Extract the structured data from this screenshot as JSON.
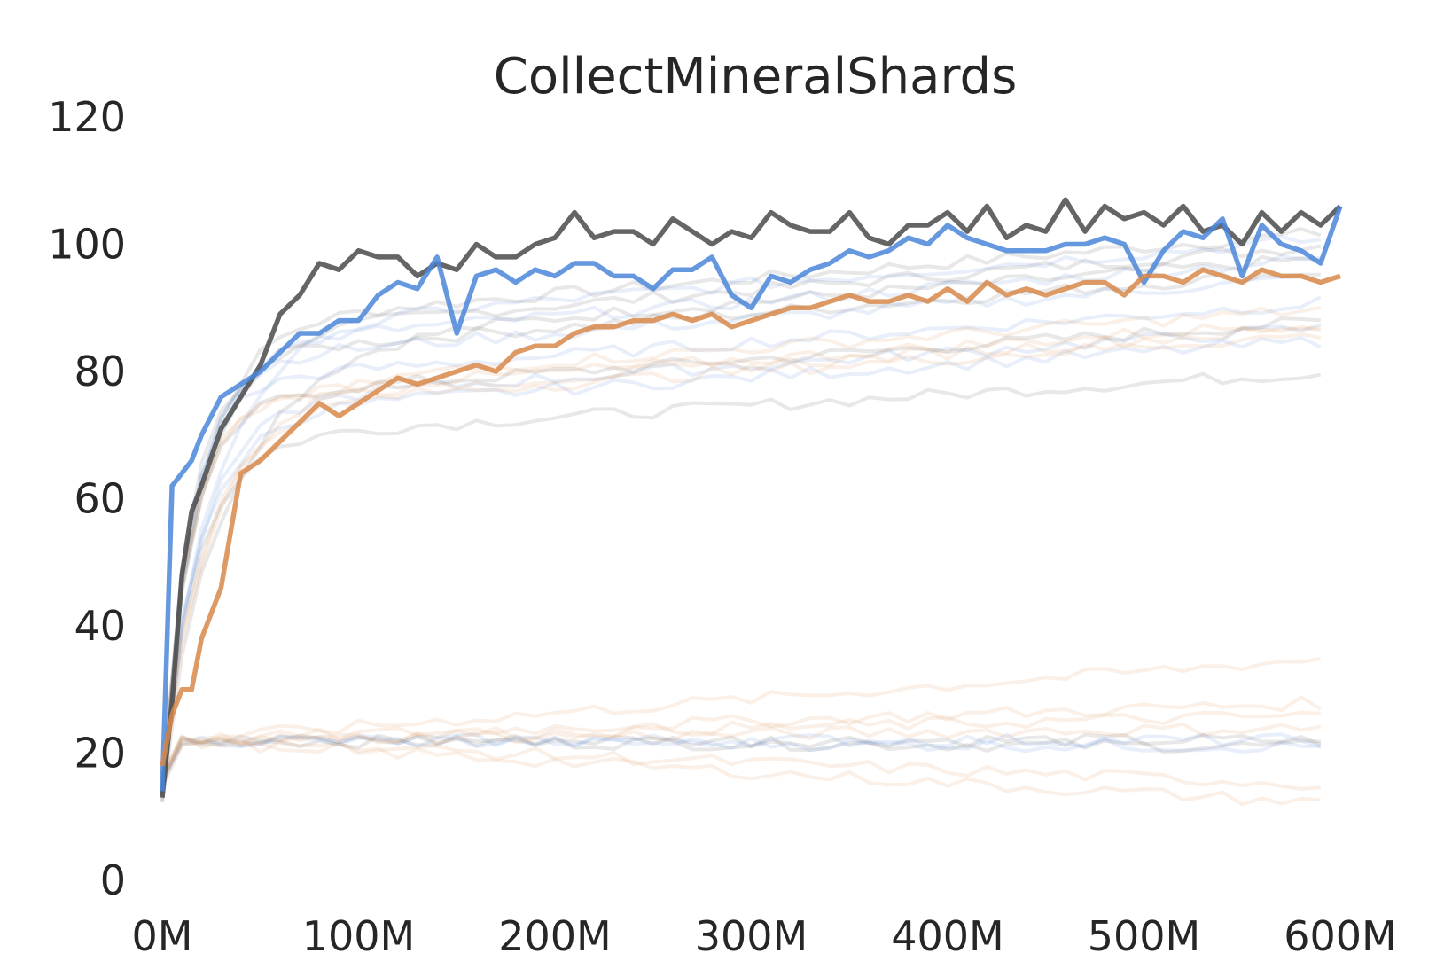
{
  "chart_data": {
    "type": "line",
    "title": "CollectMineralShards",
    "xlabel": "",
    "ylabel": "",
    "xlim": [
      0,
      600
    ],
    "ylim": [
      0,
      120
    ],
    "x_ticks": [
      "0M",
      "100M",
      "200M",
      "300M",
      "400M",
      "500M",
      "600M"
    ],
    "y_ticks": [
      "0",
      "20",
      "40",
      "60",
      "80",
      "100",
      "120"
    ],
    "x_unit": "M steps",
    "grid": false,
    "legend": "none",
    "colors": {
      "gray": "#4a4a4a",
      "blue": "#4a86d8",
      "orange": "#d8884a"
    },
    "highlighted_series": [
      {
        "color": "gray",
        "x": [
          0,
          5,
          10,
          15,
          20,
          30,
          40,
          50,
          60,
          70,
          80,
          90,
          100,
          110,
          120,
          130,
          140,
          150,
          160,
          170,
          180,
          190,
          200,
          210,
          220,
          230,
          240,
          250,
          260,
          270,
          280,
          290,
          300,
          310,
          320,
          330,
          340,
          350,
          360,
          370,
          380,
          390,
          400,
          410,
          420,
          430,
          440,
          450,
          460,
          470,
          480,
          490,
          500,
          510,
          520,
          530,
          540,
          550,
          560,
          570,
          580,
          590,
          600
        ],
        "y": [
          13,
          28,
          48,
          58,
          62,
          71,
          76,
          81,
          89,
          92,
          97,
          96,
          99,
          98,
          98,
          95,
          97,
          96,
          100,
          98,
          98,
          100,
          101,
          105,
          101,
          102,
          102,
          100,
          104,
          102,
          100,
          102,
          101,
          105,
          103,
          102,
          102,
          105,
          101,
          100,
          103,
          103,
          105,
          102,
          106,
          101,
          103,
          102,
          107,
          102,
          106,
          104,
          105,
          103,
          106,
          102,
          103,
          100,
          105,
          102,
          105,
          103,
          106
        ]
      },
      {
        "color": "blue",
        "x": [
          0,
          5,
          10,
          15,
          20,
          30,
          40,
          50,
          60,
          70,
          80,
          90,
          100,
          110,
          120,
          130,
          140,
          150,
          160,
          170,
          180,
          190,
          200,
          210,
          220,
          230,
          240,
          250,
          260,
          270,
          280,
          290,
          300,
          310,
          320,
          330,
          340,
          350,
          360,
          370,
          380,
          390,
          400,
          410,
          420,
          430,
          440,
          450,
          460,
          470,
          480,
          490,
          500,
          510,
          520,
          530,
          540,
          550,
          560,
          570,
          580,
          590,
          600
        ],
        "y": [
          14,
          62,
          64,
          66,
          70,
          76,
          78,
          80,
          83,
          86,
          86,
          88,
          88,
          92,
          94,
          93,
          98,
          86,
          95,
          96,
          94,
          96,
          95,
          97,
          97,
          95,
          95,
          93,
          96,
          96,
          98,
          92,
          90,
          95,
          94,
          96,
          97,
          99,
          98,
          99,
          101,
          100,
          103,
          101,
          100,
          99,
          99,
          99,
          100,
          100,
          101,
          100,
          94,
          99,
          102,
          101,
          104,
          95,
          103,
          100,
          99,
          97,
          106
        ]
      },
      {
        "color": "orange",
        "x": [
          0,
          5,
          10,
          15,
          20,
          30,
          40,
          50,
          60,
          70,
          80,
          90,
          100,
          110,
          120,
          130,
          140,
          150,
          160,
          170,
          180,
          190,
          200,
          210,
          220,
          230,
          240,
          250,
          260,
          270,
          280,
          290,
          300,
          310,
          320,
          330,
          340,
          350,
          360,
          370,
          380,
          390,
          400,
          410,
          420,
          430,
          440,
          450,
          460,
          470,
          480,
          490,
          500,
          510,
          520,
          530,
          540,
          550,
          560,
          570,
          580,
          590,
          600
        ],
        "y": [
          18,
          26,
          30,
          30,
          38,
          46,
          64,
          66,
          69,
          72,
          75,
          73,
          75,
          77,
          79,
          78,
          79,
          80,
          81,
          80,
          83,
          84,
          84,
          86,
          87,
          87,
          88,
          88,
          89,
          88,
          89,
          87,
          88,
          89,
          90,
          90,
          91,
          92,
          91,
          91,
          92,
          91,
          93,
          91,
          94,
          92,
          93,
          92,
          93,
          94,
          94,
          92,
          95,
          95,
          94,
          96,
          95,
          94,
          96,
          95,
          95,
          94,
          95
        ]
      }
    ],
    "background_series": [
      {
        "color": "gray",
        "y_start": 13,
        "y_end": 102
      },
      {
        "color": "gray",
        "y_start": 14,
        "y_end": 100
      },
      {
        "color": "gray",
        "y_start": 13,
        "y_end": 98
      },
      {
        "color": "gray",
        "y_start": 14,
        "y_end": 96
      },
      {
        "color": "gray",
        "y_start": 14,
        "y_end": 88
      },
      {
        "color": "gray",
        "y_start": 14,
        "y_end": 80
      },
      {
        "color": "gray",
        "y_start": 15,
        "y_end": 22
      },
      {
        "color": "gray",
        "y_start": 15,
        "y_end": 21
      },
      {
        "color": "blue",
        "y_start": 14,
        "y_end": 101
      },
      {
        "color": "blue",
        "y_start": 14,
        "y_end": 98
      },
      {
        "color": "blue",
        "y_start": 14,
        "y_end": 95
      },
      {
        "color": "blue",
        "y_start": 14,
        "y_end": 91
      },
      {
        "color": "blue",
        "y_start": 15,
        "y_end": 87
      },
      {
        "color": "blue",
        "y_start": 15,
        "y_end": 85
      },
      {
        "color": "blue",
        "y_start": 15,
        "y_end": 22
      },
      {
        "color": "blue",
        "y_start": 15,
        "y_end": 21
      },
      {
        "color": "orange",
        "y_start": 16,
        "y_end": 90
      },
      {
        "color": "orange",
        "y_start": 16,
        "y_end": 88
      },
      {
        "color": "orange",
        "y_start": 16,
        "y_end": 87
      },
      {
        "color": "orange",
        "y_start": 16,
        "y_end": 86
      },
      {
        "color": "orange",
        "y_start": 16,
        "y_end": 35
      },
      {
        "color": "orange",
        "y_start": 16,
        "y_end": 28
      },
      {
        "color": "orange",
        "y_start": 16,
        "y_end": 26
      },
      {
        "color": "orange",
        "y_start": 16,
        "y_end": 24
      },
      {
        "color": "orange",
        "y_start": 16,
        "y_end": 15
      },
      {
        "color": "orange",
        "y_start": 16,
        "y_end": 12
      }
    ]
  }
}
